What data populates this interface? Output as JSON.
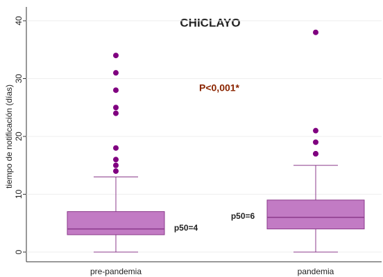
{
  "chart_data": {
    "type": "box",
    "title": "CHICLAYO",
    "y_label": "tiempo de notificación (días)",
    "categories": [
      "pre-pandemia",
      "pandemia"
    ],
    "boxes": [
      {
        "min": 0,
        "q1": 3,
        "median": 4,
        "q3": 7,
        "max": 13,
        "outliers": [
          14,
          15,
          16,
          18,
          24,
          25,
          28,
          31,
          34
        ]
      },
      {
        "min": 0,
        "q1": 4,
        "median": 6,
        "q3": 9,
        "max": 15,
        "outliers": [
          17,
          17,
          19,
          21,
          38
        ]
      }
    ],
    "annotations": [
      "P<0,001*",
      "p50=4",
      "p50=6"
    ],
    "box_color": "#c27bc4",
    "line_color": "#8b3a8b",
    "outlier_color": "#800080",
    "ylim": [
      0,
      40
    ],
    "yticks": [
      0,
      10,
      20,
      30,
      40
    ],
    "grid": true
  }
}
